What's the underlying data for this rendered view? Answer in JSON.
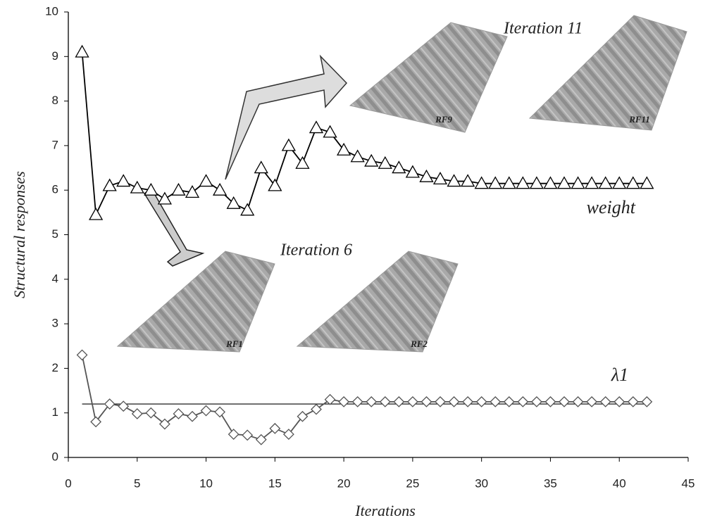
{
  "chart_data": {
    "type": "line",
    "xlabel": "Iterations",
    "ylabel": "Structural responses",
    "x": [
      1,
      2,
      3,
      4,
      5,
      6,
      7,
      8,
      9,
      10,
      11,
      12,
      13,
      14,
      15,
      16,
      17,
      18,
      19,
      20,
      21,
      22,
      23,
      24,
      25,
      26,
      27,
      28,
      29,
      30,
      31,
      32,
      33,
      34,
      35,
      36,
      37,
      38,
      39,
      40,
      41,
      42
    ],
    "series": [
      {
        "name": "weight",
        "color": "#000000",
        "marker": "triangle",
        "values": [
          9.1,
          5.45,
          6.1,
          6.2,
          6.05,
          6.0,
          5.8,
          6.0,
          5.95,
          6.2,
          6.0,
          5.7,
          5.55,
          6.5,
          6.1,
          7.0,
          6.6,
          7.4,
          7.3,
          6.9,
          6.75,
          6.65,
          6.6,
          6.5,
          6.4,
          6.3,
          6.25,
          6.2,
          6.2,
          6.15,
          6.15,
          6.15,
          6.15,
          6.15,
          6.15,
          6.15,
          6.15,
          6.15,
          6.15,
          6.15,
          6.15,
          6.15
        ]
      },
      {
        "name": "λ1",
        "color": "#555555",
        "marker": "diamond",
        "values": [
          2.3,
          0.8,
          1.2,
          1.15,
          0.98,
          1.0,
          0.75,
          0.98,
          0.92,
          1.05,
          1.02,
          0.52,
          0.5,
          0.4,
          0.65,
          0.52,
          0.92,
          1.08,
          1.3,
          1.25,
          1.25,
          1.25,
          1.25,
          1.25,
          1.25,
          1.25,
          1.25,
          1.25,
          1.25,
          1.25,
          1.25,
          1.25,
          1.25,
          1.25,
          1.25,
          1.25,
          1.25,
          1.25,
          1.25,
          1.25,
          1.25,
          1.25
        ]
      }
    ],
    "reference_line": {
      "y": 1.2,
      "x": [
        1,
        42
      ]
    },
    "annotations": [
      "Iteration 11",
      "Iteration 6",
      "RF9",
      "RF11",
      "RF1",
      "RF2"
    ],
    "xlim": [
      0,
      45
    ],
    "xticks": [
      0,
      5,
      10,
      15,
      20,
      25,
      30,
      35,
      40,
      45
    ],
    "ylim": [
      0,
      10
    ],
    "yticks": [
      0,
      1,
      2,
      3,
      4,
      5,
      6,
      7,
      8,
      9,
      10
    ],
    "grid": false
  }
}
